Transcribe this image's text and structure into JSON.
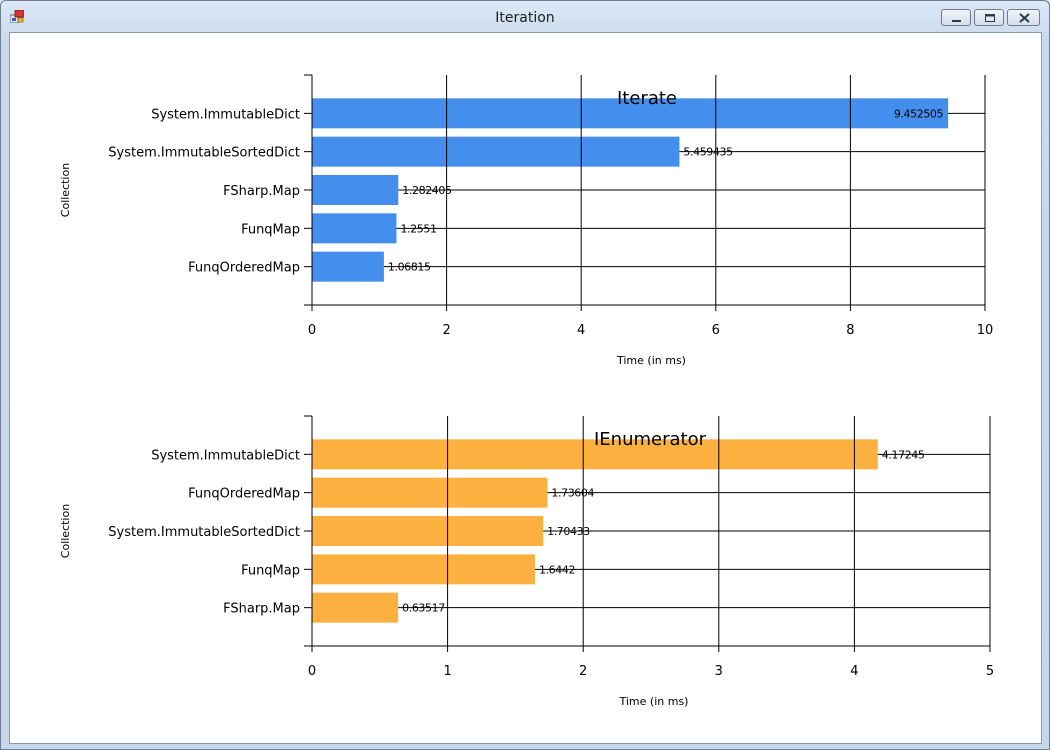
{
  "window": {
    "title": "Iteration"
  },
  "chart_data": [
    {
      "type": "bar",
      "orientation": "horizontal",
      "title": "Iterate",
      "xlabel": "Time (in ms)",
      "ylabel": "Collection",
      "xlim": [
        0,
        10
      ],
      "xticks": [
        0,
        2,
        4,
        6,
        8,
        10
      ],
      "color": "#448eee",
      "grid": true,
      "categories": [
        "System.ImmutableDict",
        "System.ImmutableSortedDict",
        "FSharp.Map",
        "FunqMap",
        "FunqOrderedMap"
      ],
      "values": [
        9.452505,
        5.459435,
        1.282405,
        1.2551,
        1.06815
      ],
      "labels": [
        "9.452505",
        "5.459435",
        "1.282405",
        "1.2551",
        "1.06815"
      ]
    },
    {
      "type": "bar",
      "orientation": "horizontal",
      "title": "IEnumerator",
      "xlabel": "Time (in ms)",
      "ylabel": "Collection",
      "xlim": [
        0,
        5
      ],
      "xticks": [
        0,
        1,
        2,
        3,
        4,
        5
      ],
      "color": "#fbb040",
      "grid": true,
      "categories": [
        "System.ImmutableDict",
        "FunqOrderedMap",
        "System.ImmutableSortedDict",
        "FunqMap",
        "FSharp.Map"
      ],
      "values": [
        4.17245,
        1.73604,
        1.70433,
        1.6442,
        0.63517
      ],
      "labels": [
        "4.17245",
        "1.73604",
        "1.70433",
        "1.6442",
        "0.63517"
      ]
    }
  ]
}
